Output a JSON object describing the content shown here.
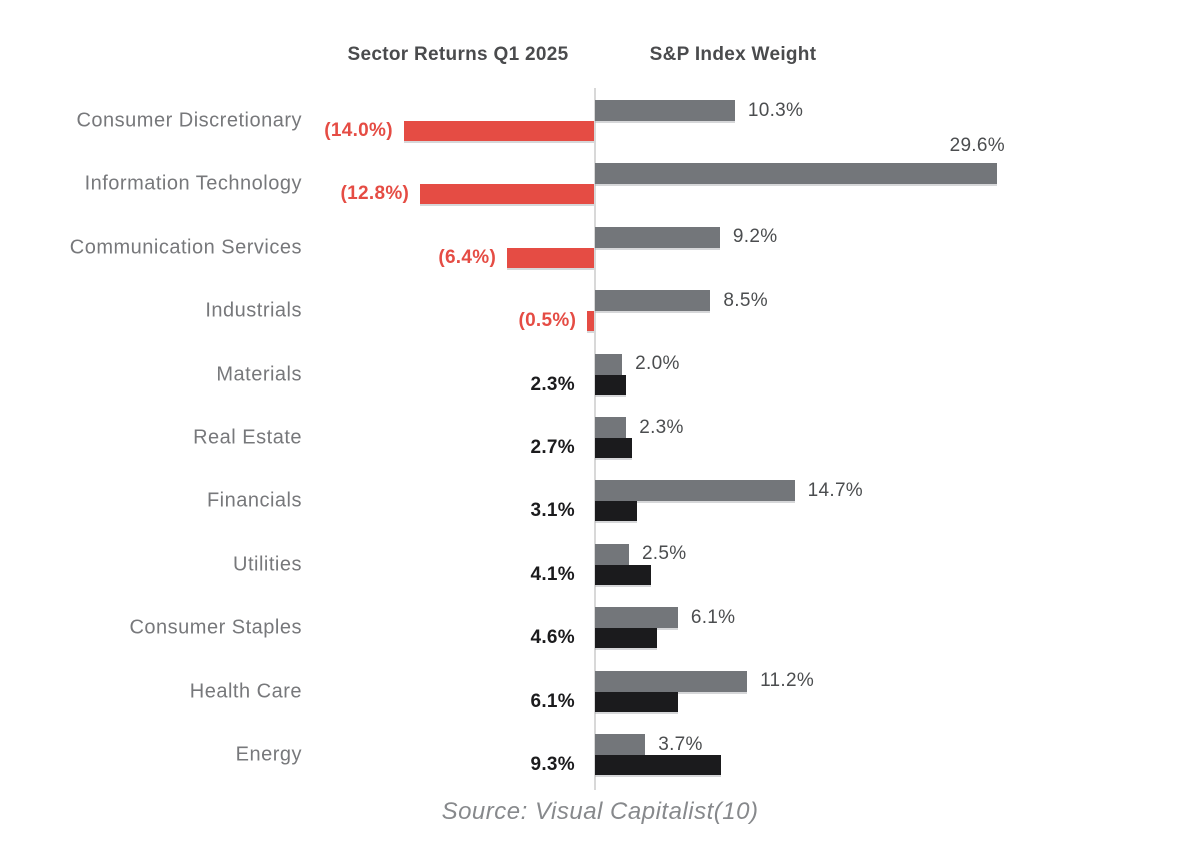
{
  "chart_data": {
    "type": "bar",
    "orientation": "horizontal-diverging",
    "title_left": "Sector Returns Q1 2025",
    "title_right": "S&P Index Weight",
    "source": "Source: Visual Capitalist(10)",
    "categories": [
      "Consumer Discretionary",
      "Information Technology",
      "Communication Services",
      "Industrials",
      "Materials",
      "Real Estate",
      "Financials",
      "Utilities",
      "Consumer Staples",
      "Health Care",
      "Energy"
    ],
    "series": [
      {
        "name": "Sector Returns Q1 2025",
        "values": [
          -14.0,
          -12.8,
          -6.4,
          -0.5,
          2.3,
          2.7,
          3.1,
          4.1,
          4.6,
          6.1,
          9.3
        ],
        "labels": [
          "(14.0%)",
          "(12.8%)",
          "(6.4%)",
          "(0.5%)",
          "2.3%",
          "2.7%",
          "3.1%",
          "4.1%",
          "4.6%",
          "6.1%",
          "9.3%"
        ]
      },
      {
        "name": "S&P Index Weight",
        "values": [
          10.3,
          29.6,
          9.2,
          8.5,
          2.0,
          2.3,
          14.7,
          2.5,
          6.1,
          11.2,
          3.7
        ],
        "labels": [
          "10.3%",
          "29.6%",
          "9.2%",
          "8.5%",
          "2.0%",
          "2.3%",
          "14.7%",
          "2.5%",
          "6.1%",
          "11.2%",
          "3.7%"
        ],
        "label_positions": [
          "right",
          "above",
          "right",
          "right",
          "right",
          "right",
          "right",
          "right",
          "right",
          "right",
          "right"
        ]
      }
    ],
    "colors": {
      "negative_bar": "#E54C44",
      "negative_label": "#E54C44",
      "positive_bar": "#1B1B1D",
      "positive_label": "#1B1B1D",
      "weight_bar": "#73767A",
      "weight_label": "#4B4D4F",
      "sector_label": "#77787B",
      "header_text": "#4A4B4D",
      "axis_line": "#D8D8D8",
      "source_text": "#87898C"
    },
    "axis": {
      "zero_line": true,
      "grid": false,
      "tick_labels": false,
      "data_labels": true
    },
    "legend": "none"
  }
}
